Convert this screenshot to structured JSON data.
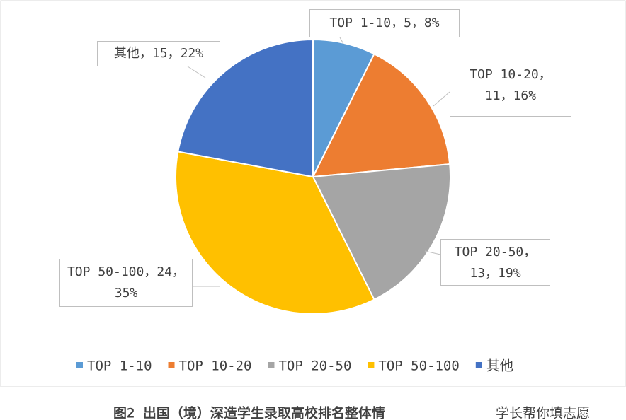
{
  "chart_data": {
    "type": "pie",
    "categories": [
      "TOP 1-10",
      "TOP 10-20",
      "TOP 20-50",
      "TOP 50-100",
      "其他"
    ],
    "values": [
      5,
      11,
      13,
      24,
      15
    ],
    "value_labels": [
      "TOP 1-10，5，8%",
      "TOP 10-20，11，16%",
      "TOP 20-50，13，19%",
      "TOP 50-100，24，35%",
      "其他，15，22%"
    ],
    "colors": [
      "#5b9bd5",
      "#ed7d31",
      "#a5a5a5",
      "#ffc000",
      "#4472c4"
    ],
    "legend": "bottom"
  },
  "caption": "图2 出国（境）深造学生录取高校排名整体情",
  "watermark": "学长帮你填志愿"
}
